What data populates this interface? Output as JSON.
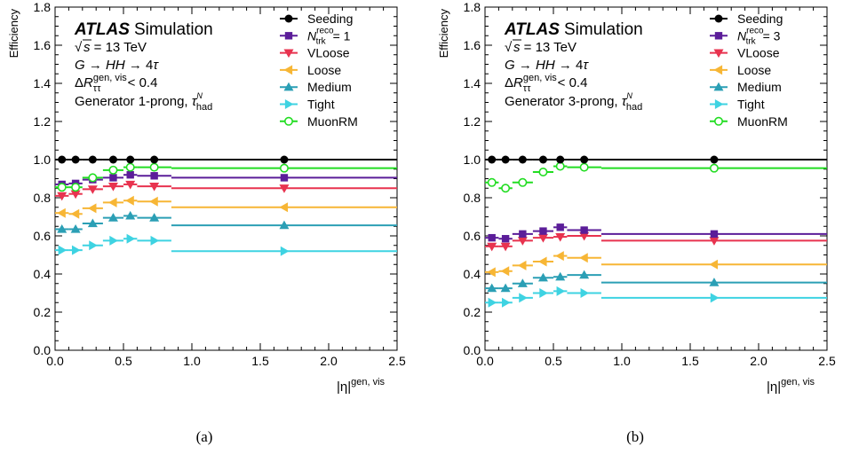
{
  "captions": [
    "(a)",
    "(b)"
  ],
  "colors": {
    "Seeding": "#000000",
    "Ntrk": "#5b1d99",
    "VLoose": "#e8334f",
    "Loose": "#f7b635",
    "Medium": "#2b9fb5",
    "Tight": "#3ed3e2",
    "MuonRM": "#22dd22"
  },
  "chart_data": [
    {
      "type": "scatter",
      "panel_label": "(a)",
      "ylabel": "Efficiency",
      "xlabel": "|η|gen, vis",
      "xlim": [
        0,
        2.5
      ],
      "ylim": [
        0,
        1.8
      ],
      "xticks": [
        0.0,
        0.5,
        1.0,
        1.5,
        2.0,
        2.5
      ],
      "yticks": [
        0.0,
        0.2,
        0.4,
        0.6,
        0.8,
        1.0,
        1.2,
        1.4,
        1.6,
        1.8
      ],
      "annotations": [
        "ATLAS",
        "Simulation",
        "√s = 13 TeV",
        "G → HH → 4τ",
        "ΔRgen, visττ < 0.4",
        "Generator 1-prong, τNhad"
      ],
      "x": [
        0.05,
        0.15,
        0.275,
        0.425,
        0.55,
        0.725,
        1.675
      ],
      "x_bins": [
        [
          0.0,
          0.1
        ],
        [
          0.1,
          0.2
        ],
        [
          0.2,
          0.35
        ],
        [
          0.35,
          0.5
        ],
        [
          0.5,
          0.6
        ],
        [
          0.6,
          0.85
        ],
        [
          0.85,
          2.5
        ]
      ],
      "series": [
        {
          "name": "Seeding",
          "marker": "circle",
          "values": [
            1.0,
            1.0,
            1.0,
            1.0,
            1.0,
            1.0,
            1.0
          ]
        },
        {
          "name": "Ntrk",
          "legend_label": "Nrecotrk = 1",
          "marker": "square",
          "values": [
            0.87,
            0.875,
            0.895,
            0.905,
            0.92,
            0.915,
            0.905
          ]
        },
        {
          "name": "VLoose",
          "marker": "tri-down",
          "values": [
            0.81,
            0.82,
            0.845,
            0.86,
            0.87,
            0.86,
            0.85
          ]
        },
        {
          "name": "Loose",
          "marker": "tri-left",
          "values": [
            0.72,
            0.715,
            0.745,
            0.775,
            0.785,
            0.78,
            0.75
          ]
        },
        {
          "name": "Medium",
          "marker": "tri-up",
          "values": [
            0.635,
            0.635,
            0.665,
            0.695,
            0.705,
            0.695,
            0.655
          ]
        },
        {
          "name": "Tight",
          "marker": "tri-right",
          "values": [
            0.525,
            0.525,
            0.55,
            0.575,
            0.585,
            0.575,
            0.52
          ]
        },
        {
          "name": "MuonRM",
          "marker": "open-circle",
          "values": [
            0.855,
            0.855,
            0.905,
            0.945,
            0.96,
            0.96,
            0.955
          ]
        }
      ]
    },
    {
      "type": "scatter",
      "panel_label": "(b)",
      "ylabel": "Efficiency",
      "xlabel": "|η|gen, vis",
      "xlim": [
        0,
        2.5
      ],
      "ylim": [
        0,
        1.8
      ],
      "xticks": [
        0.0,
        0.5,
        1.0,
        1.5,
        2.0,
        2.5
      ],
      "yticks": [
        0.0,
        0.2,
        0.4,
        0.6,
        0.8,
        1.0,
        1.2,
        1.4,
        1.6,
        1.8
      ],
      "annotations": [
        "ATLAS",
        "Simulation",
        "√s = 13 TeV",
        "G → HH → 4τ",
        "ΔRgen, visττ < 0.4",
        "Generator 3-prong, τNhad"
      ],
      "x": [
        0.05,
        0.15,
        0.275,
        0.425,
        0.55,
        0.725,
        1.675
      ],
      "x_bins": [
        [
          0.0,
          0.1
        ],
        [
          0.1,
          0.2
        ],
        [
          0.2,
          0.35
        ],
        [
          0.35,
          0.5
        ],
        [
          0.5,
          0.6
        ],
        [
          0.6,
          0.85
        ],
        [
          0.85,
          2.5
        ]
      ],
      "series": [
        {
          "name": "Seeding",
          "marker": "circle",
          "values": [
            1.0,
            1.0,
            1.0,
            1.0,
            1.0,
            1.0,
            1.0
          ]
        },
        {
          "name": "Ntrk",
          "legend_label": "Nrecotrk = 3",
          "marker": "square",
          "values": [
            0.59,
            0.585,
            0.61,
            0.625,
            0.645,
            0.63,
            0.61
          ]
        },
        {
          "name": "VLoose",
          "marker": "tri-down",
          "values": [
            0.545,
            0.545,
            0.575,
            0.59,
            0.595,
            0.6,
            0.575
          ]
        },
        {
          "name": "Loose",
          "marker": "tri-left",
          "values": [
            0.41,
            0.415,
            0.445,
            0.465,
            0.495,
            0.485,
            0.45
          ]
        },
        {
          "name": "Medium",
          "marker": "tri-up",
          "values": [
            0.325,
            0.325,
            0.35,
            0.38,
            0.385,
            0.395,
            0.355
          ]
        },
        {
          "name": "Tight",
          "marker": "tri-right",
          "values": [
            0.25,
            0.25,
            0.275,
            0.3,
            0.31,
            0.3,
            0.275
          ]
        },
        {
          "name": "MuonRM",
          "marker": "open-circle",
          "values": [
            0.88,
            0.85,
            0.88,
            0.935,
            0.965,
            0.96,
            0.955
          ]
        }
      ]
    }
  ]
}
